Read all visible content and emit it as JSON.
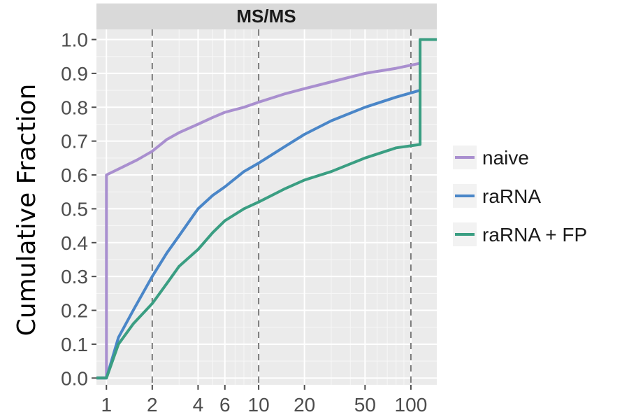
{
  "chart_data": {
    "type": "line",
    "subtype": "step-ecdf",
    "title": "",
    "facet_label": "MS/MS",
    "xlabel": "",
    "ylabel": "Cumulative Fraction",
    "x_scale": "log10",
    "xlim": [
      0.86,
      148
    ],
    "ylim": [
      -0.02,
      1.03
    ],
    "x_ticks": [
      1,
      2,
      4,
      6,
      10,
      20,
      50,
      100
    ],
    "x_tick_labels": [
      "1",
      "2",
      "4",
      "6",
      "10",
      "20",
      "50",
      "100"
    ],
    "y_ticks": [
      0,
      0.1,
      0.2,
      0.3,
      0.4,
      0.5,
      0.6,
      0.7,
      0.8,
      0.9,
      1.0
    ],
    "y_tick_labels": [
      "0.0",
      "0.1",
      "0.2",
      "0.3",
      "0.4",
      "0.5",
      "0.6",
      "0.7",
      "0.8",
      "0.9",
      "1.0"
    ],
    "vlines": [
      2,
      10,
      100
    ],
    "grid": true,
    "legend_position": "right",
    "series": [
      {
        "name": "naive",
        "color": "#a98fcf",
        "points": [
          [
            0.86,
            0.0
          ],
          [
            1.0,
            0.0
          ],
          [
            1.0,
            0.6
          ],
          [
            1.3,
            0.625
          ],
          [
            1.6,
            0.645
          ],
          [
            2.0,
            0.67
          ],
          [
            2.5,
            0.705
          ],
          [
            3.0,
            0.725
          ],
          [
            4.0,
            0.75
          ],
          [
            5.0,
            0.77
          ],
          [
            6.0,
            0.785
          ],
          [
            8.0,
            0.8
          ],
          [
            10.0,
            0.815
          ],
          [
            15.0,
            0.84
          ],
          [
            20.0,
            0.855
          ],
          [
            30.0,
            0.875
          ],
          [
            50.0,
            0.9
          ],
          [
            80.0,
            0.915
          ],
          [
            115.0,
            0.93
          ]
        ]
      },
      {
        "name": "raRNA",
        "color": "#4a86c8",
        "points": [
          [
            0.86,
            0.0
          ],
          [
            1.0,
            0.0
          ],
          [
            1.2,
            0.12
          ],
          [
            1.5,
            0.2
          ],
          [
            2.0,
            0.3
          ],
          [
            2.5,
            0.37
          ],
          [
            3.0,
            0.42
          ],
          [
            4.0,
            0.5
          ],
          [
            5.0,
            0.54
          ],
          [
            6.0,
            0.565
          ],
          [
            8.0,
            0.61
          ],
          [
            10.0,
            0.635
          ],
          [
            15.0,
            0.685
          ],
          [
            20.0,
            0.72
          ],
          [
            30.0,
            0.76
          ],
          [
            50.0,
            0.8
          ],
          [
            80.0,
            0.83
          ],
          [
            115.0,
            0.85
          ]
        ]
      },
      {
        "name": "raRNA + FP",
        "color": "#3a9e82",
        "points": [
          [
            0.86,
            0.0
          ],
          [
            1.0,
            0.0
          ],
          [
            1.2,
            0.1
          ],
          [
            1.5,
            0.16
          ],
          [
            2.0,
            0.22
          ],
          [
            2.5,
            0.28
          ],
          [
            3.0,
            0.33
          ],
          [
            4.0,
            0.38
          ],
          [
            5.0,
            0.43
          ],
          [
            6.0,
            0.465
          ],
          [
            8.0,
            0.5
          ],
          [
            10.0,
            0.52
          ],
          [
            15.0,
            0.56
          ],
          [
            20.0,
            0.585
          ],
          [
            30.0,
            0.61
          ],
          [
            50.0,
            0.65
          ],
          [
            80.0,
            0.68
          ],
          [
            115.0,
            0.69
          ],
          [
            115.0,
            1.0
          ],
          [
            148.0,
            1.0
          ]
        ]
      }
    ]
  }
}
